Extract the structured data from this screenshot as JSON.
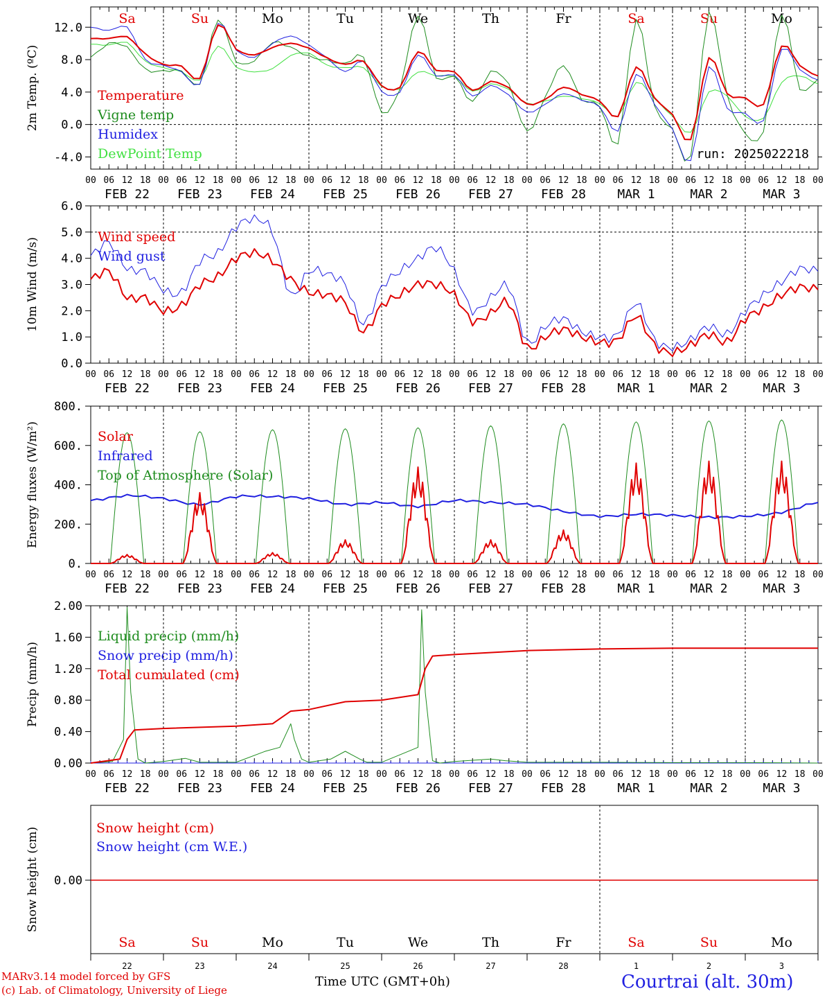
{
  "run_label": "run: 2025022218",
  "day_names": [
    "Sa",
    "Su",
    "Mo",
    "Tu",
    "We",
    "Th",
    "Fr",
    "Sa",
    "Su",
    "Mo"
  ],
  "date_labels": [
    "FEB 22",
    "FEB 23",
    "FEB 24",
    "FEB 25",
    "FEB 26",
    "FEB 27",
    "FEB 28",
    "MAR  1",
    "MAR  2",
    "MAR  3"
  ],
  "date_numbers": [
    "22",
    "23",
    "24",
    "25",
    "26",
    "27",
    "28",
    "1",
    "2",
    "3"
  ],
  "hour_ticks": [
    "00",
    "06",
    "12",
    "18"
  ],
  "last_hour_tick": "00",
  "footer": {
    "model_line1": "MARv3.14 model forced by GFS",
    "model_line2": "(c) Lab. of Climatology, University of Liege",
    "xlabel": "Time UTC (GMT+0h)",
    "station": "Courtrai (alt. 30m)"
  },
  "colors": {
    "red": "#e00000",
    "green": "#1e8c1e",
    "blue": "#1f1fe0",
    "lightgreen": "#40e040",
    "weekend": "#e00000",
    "weekday": "#000000"
  },
  "chart_data": [
    {
      "type": "line",
      "ylabel": "2m Temp. (ºC)",
      "ylim": [
        -5.5,
        14.5
      ],
      "yticks": [
        "12.0",
        "8.0",
        "4.0",
        "0.0",
        "-4.0"
      ],
      "ytick_values": [
        12,
        8,
        4,
        0,
        -4
      ],
      "dashed_zero": true,
      "x_days": [
        0,
        0.25,
        0.5,
        0.75,
        1,
        1.25,
        1.5,
        1.75,
        2,
        2.25,
        2.5,
        2.75,
        3,
        3.25,
        3.5,
        3.75,
        4,
        4.25,
        4.5,
        4.75,
        5,
        5.25,
        5.5,
        5.75,
        6,
        6.25,
        6.5,
        6.75,
        7,
        7.25,
        7.5,
        7.75,
        8,
        8.25,
        8.5,
        8.75,
        9,
        9.25,
        9.5,
        9.75,
        10
      ],
      "series": [
        {
          "name": "Temperature",
          "color": "#e00000",
          "width": 2,
          "values": [
            10.6,
            10.6,
            10.8,
            8.7,
            7.4,
            7.2,
            5.7,
            12.3,
            9.3,
            8.6,
            9.5,
            10.0,
            9.4,
            8.2,
            7.4,
            7.8,
            4.8,
            4.6,
            9.0,
            6.7,
            6.5,
            4.2,
            5.3,
            4.5,
            2.5,
            3.1,
            4.6,
            3.7,
            2.9,
            1.0,
            7.1,
            3.3,
            1.2,
            -1.9,
            8.2,
            3.8,
            3.3,
            2.5,
            9.7,
            7.3,
            6.0
          ]
        },
        {
          "name": "Vigne temp",
          "color": "#1e8c1e",
          "width": 1,
          "values": [
            8.3,
            10.0,
            9.5,
            6.8,
            6.6,
            6.6,
            5.0,
            13.0,
            7.8,
            7.9,
            10.1,
            9.5,
            8.4,
            7.9,
            7.5,
            8.3,
            1.5,
            4.4,
            13.5,
            5.8,
            6.0,
            2.8,
            6.5,
            4.9,
            -0.9,
            3.4,
            7.3,
            3.1,
            2.3,
            -2.3,
            13.0,
            2.3,
            -0.6,
            -4.0,
            13.8,
            3.6,
            -1.1,
            -0.8,
            13.6,
            4.4,
            5.6
          ]
        },
        {
          "name": "Humidex",
          "color": "#1f1fe0",
          "width": 1,
          "values": [
            12.0,
            11.6,
            12.0,
            8.0,
            7.3,
            6.5,
            5.0,
            12.5,
            9.2,
            8.3,
            10.0,
            10.9,
            9.8,
            8.2,
            6.5,
            7.8,
            4.1,
            4.0,
            8.6,
            6.0,
            6.1,
            3.5,
            4.8,
            3.6,
            1.5,
            2.5,
            3.8,
            3.0,
            2.2,
            -0.8,
            6.2,
            2.5,
            -0.6,
            -4.5,
            7.1,
            2.0,
            1.4,
            0.5,
            9.3,
            6.8,
            5.5
          ]
        },
        {
          "name": "DewPoint Temp",
          "color": "#40e040",
          "width": 1,
          "values": [
            9.9,
            9.8,
            10.1,
            7.8,
            7.0,
            6.5,
            5.5,
            9.7,
            7.1,
            6.5,
            6.9,
            8.5,
            8.8,
            7.3,
            7.0,
            7.0,
            4.7,
            4.4,
            6.5,
            6.0,
            5.9,
            4.1,
            5.0,
            4.3,
            2.6,
            2.9,
            3.5,
            3.2,
            2.6,
            1.0,
            5.2,
            3.2,
            1.0,
            -1.0,
            4.0,
            3.5,
            1.0,
            0.8,
            5.2,
            6.0,
            5.0
          ]
        }
      ]
    },
    {
      "type": "line",
      "ylabel": "10m Wind (m/s)",
      "ylim": [
        0,
        6.0
      ],
      "yticks": [
        "6.0",
        "5.0",
        "4.0",
        "3.0",
        "2.0",
        "1.0",
        "0.0"
      ],
      "ytick_values": [
        6,
        5,
        4,
        3,
        2,
        1,
        0
      ],
      "dashed_lines": [
        5.0
      ],
      "x_days": [
        0,
        0.25,
        0.5,
        0.75,
        1,
        1.25,
        1.5,
        1.75,
        2,
        2.25,
        2.5,
        2.75,
        3,
        3.25,
        3.5,
        3.75,
        4,
        4.25,
        4.5,
        4.75,
        5,
        5.25,
        5.5,
        5.75,
        6,
        6.25,
        6.5,
        6.75,
        7,
        7.25,
        7.5,
        7.75,
        8,
        8.25,
        8.5,
        8.75,
        9,
        9.25,
        9.5,
        9.75,
        10
      ],
      "series": [
        {
          "name": "Wind speed",
          "color": "#e00000",
          "width": 2,
          "values": [
            3.2,
            3.5,
            2.5,
            2.5,
            2.0,
            2.2,
            3.0,
            3.3,
            4.0,
            4.2,
            3.9,
            3.2,
            2.7,
            2.6,
            2.3,
            1.2,
            2.2,
            2.6,
            3.0,
            3.0,
            2.6,
            1.6,
            1.9,
            2.3,
            0.6,
            1.0,
            1.3,
            1.0,
            0.8,
            0.9,
            1.8,
            0.7,
            0.4,
            0.7,
            1.1,
            0.8,
            1.7,
            2.1,
            2.6,
            2.9,
            2.8
          ]
        },
        {
          "name": "Wind gust",
          "color": "#1f1fe0",
          "width": 1,
          "values": [
            4.1,
            4.6,
            3.6,
            3.5,
            2.8,
            2.7,
            3.9,
            4.2,
            5.2,
            5.5,
            5.0,
            2.6,
            3.5,
            3.4,
            3.0,
            1.5,
            2.9,
            3.5,
            4.0,
            4.4,
            3.5,
            2.0,
            2.5,
            2.9,
            0.8,
            1.4,
            1.7,
            1.2,
            1.0,
            1.1,
            2.3,
            0.9,
            0.6,
            0.9,
            1.4,
            1.1,
            2.0,
            2.6,
            3.1,
            3.6,
            3.5
          ]
        }
      ]
    },
    {
      "type": "line",
      "ylabel": "Energy fluxes (W/m²)",
      "ylim": [
        0,
        800
      ],
      "yticks": [
        "800.",
        "600.",
        "400.",
        "200.",
        "0."
      ],
      "ytick_values": [
        800,
        600,
        400,
        200,
        0
      ],
      "series": [
        {
          "name": "Solar",
          "color": "#e00000",
          "width": 2,
          "day_peaks": [
            45,
            360,
            55,
            120,
            490,
            120,
            170,
            510,
            520,
            520
          ]
        },
        {
          "name": "Infrared",
          "color": "#1f1fe0",
          "width": 2,
          "values": [
            320,
            345,
            330,
            300,
            340,
            340,
            330,
            300,
            310,
            290,
            320,
            310,
            300,
            265,
            240,
            250,
            245,
            235,
            240,
            260,
            310
          ]
        },
        {
          "name": "Top of Atmosphere (Solar)",
          "color": "#1e8c1e",
          "width": 1,
          "day_peaks": [
            665,
            670,
            680,
            685,
            690,
            700,
            710,
            720,
            725,
            730
          ]
        }
      ]
    },
    {
      "type": "line",
      "ylabel": "Precip (mm/h)",
      "ylim": [
        0,
        2.0
      ],
      "yticks": [
        "2.00",
        "1.60",
        "1.20",
        "0.80",
        "0.40",
        "0.00"
      ],
      "ytick_values": [
        2.0,
        1.6,
        1.2,
        0.8,
        0.4,
        0.0
      ],
      "series": [
        {
          "name": "Liquid precip (mm/h)",
          "color": "#1e8c1e",
          "width": 1,
          "x_days": [
            0,
            0.3,
            0.45,
            0.5,
            0.55,
            0.65,
            0.75,
            1.0,
            1.3,
            1.5,
            2.0,
            2.4,
            2.6,
            2.75,
            2.8,
            2.9,
            3.0,
            3.3,
            3.5,
            3.7,
            3.8,
            4.0,
            4.5,
            4.55,
            4.6,
            4.7,
            4.8,
            5.0,
            5.5,
            5.7,
            6.0,
            7.0,
            8.0,
            9.0,
            10.0
          ],
          "values": [
            0,
            0.02,
            0.3,
            1.98,
            0.9,
            0.05,
            0,
            0.02,
            0.06,
            0.01,
            0.01,
            0.15,
            0.2,
            0.5,
            0.3,
            0.05,
            0.01,
            0.05,
            0.15,
            0.05,
            0.01,
            0.01,
            0.2,
            1.95,
            0.9,
            0.03,
            0,
            0.02,
            0.05,
            0.03,
            0.01,
            0.01,
            0.005,
            0.005,
            0
          ]
        },
        {
          "name": "Snow precip (mm/h)",
          "color": "#1f1fe0",
          "width": 1,
          "x_days": [
            0,
            10
          ],
          "values": [
            0,
            0
          ]
        },
        {
          "name": "Total cumulated (cm)",
          "color": "#e00000",
          "width": 2,
          "x_days": [
            0,
            0.4,
            0.5,
            0.6,
            1,
            2,
            2.5,
            2.75,
            3,
            3.5,
            4,
            4.5,
            4.6,
            4.7,
            5,
            6,
            7,
            8,
            10
          ],
          "values": [
            0,
            0.05,
            0.3,
            0.42,
            0.44,
            0.47,
            0.5,
            0.66,
            0.68,
            0.78,
            0.8,
            0.87,
            1.2,
            1.36,
            1.38,
            1.43,
            1.45,
            1.46,
            1.46
          ]
        }
      ]
    },
    {
      "type": "line",
      "ylabel": "Snow height (cm)",
      "yticks": [
        "0.00"
      ],
      "ytick_values": [
        0
      ],
      "series": [
        {
          "name": "Snow height (cm)",
          "color": "#e00000",
          "width": 1,
          "values": [
            0,
            0
          ]
        },
        {
          "name": "Snow height (cm W.E.)",
          "color": "#1f1fe0",
          "width": 1,
          "values": [
            0,
            0
          ]
        }
      ]
    }
  ]
}
